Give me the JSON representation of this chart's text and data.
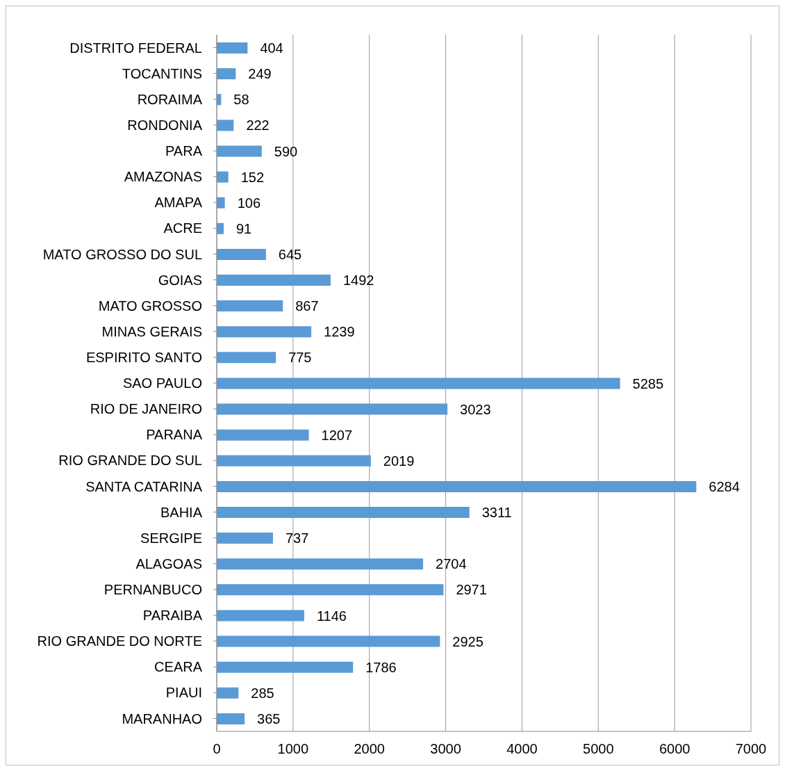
{
  "chart_data": {
    "type": "bar",
    "orientation": "horizontal",
    "categories": [
      "DISTRITO FEDERAL",
      "TOCANTINS",
      "RORAIMA",
      "RONDONIA",
      "PARA",
      "AMAZONAS",
      "AMAPA",
      "ACRE",
      "MATO GROSSO DO SUL",
      "GOIAS",
      "MATO GROSSO",
      "MINAS GERAIS",
      "ESPIRITO SANTO",
      "SAO PAULO",
      "RIO DE JANEIRO",
      "PARANA",
      "RIO GRANDE DO SUL",
      "SANTA CATARINA",
      "BAHIA",
      "SERGIPE",
      "ALAGOAS",
      "PERNANBUCO",
      "PARAIBA",
      "RIO GRANDE DO NORTE",
      "CEARA",
      "PIAUI",
      "MARANHAO"
    ],
    "values": [
      404,
      249,
      58,
      222,
      590,
      152,
      106,
      91,
      645,
      1492,
      867,
      1239,
      775,
      5285,
      3023,
      1207,
      2019,
      6284,
      3311,
      737,
      2704,
      2971,
      1146,
      2925,
      1786,
      285,
      365
    ],
    "color": "#5b9bd5",
    "xlim": [
      0,
      7000
    ],
    "xticks": [
      0,
      1000,
      2000,
      3000,
      4000,
      5000,
      6000,
      7000
    ],
    "grid": "x",
    "data_labels": true
  }
}
